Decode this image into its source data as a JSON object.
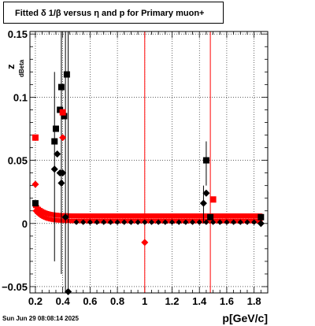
{
  "window": {
    "title": "Fitted δ 1/β versus η and p for Primary muon+",
    "timestamp": "Sun Jun 29 08:08:14 2025"
  },
  "chart_data": {
    "type": "scatter",
    "title": "Fitted δ 1/β versus η and p for Primary muon+",
    "xlabel": "p[GeV/c]",
    "ylabel": "z",
    "ylabel_sub": "dBeta",
    "xlim": [
      0.16,
      1.9
    ],
    "ylim": [
      -0.055,
      0.152
    ],
    "grid": true,
    "x_ticks": [
      0.2,
      0.4,
      0.6,
      0.8,
      1.0,
      1.2,
      1.4,
      1.6,
      1.8
    ],
    "x_tick_labels": [
      "0.2",
      "0.4",
      "0.6",
      "0.8",
      "1",
      "1.2",
      "1.4",
      "1.6",
      "1.8"
    ],
    "y_ticks": [
      -0.05,
      0,
      0.05,
      0.1,
      0.15
    ],
    "y_tick_labels": [
      "−0.05",
      "0",
      "0.05",
      "0.1",
      "0.15"
    ],
    "vertical_lines": [
      1.0,
      1.48
    ],
    "colors": {
      "black": "#000000",
      "red": "#ff0000"
    },
    "series": [
      {
        "color": "#000000",
        "marker": "square",
        "points": [
          {
            "x": 0.2,
            "y": 0.016
          },
          {
            "x": 0.34,
            "y": 0.065
          },
          {
            "x": 0.35,
            "y": 0.075
          },
          {
            "x": 0.38,
            "y": 0.09
          },
          {
            "x": 0.39,
            "y": 0.108
          },
          {
            "x": 0.41,
            "y": 0.085
          },
          {
            "x": 0.43,
            "y": 0.118
          },
          {
            "x": 1.45,
            "y": 0.05
          },
          {
            "x": 1.48,
            "y": 0.005
          },
          {
            "x": 1.85,
            "y": 0.005
          }
        ]
      },
      {
        "color": "#000000",
        "marker": "diamond",
        "points": [
          {
            "x": 0.34,
            "y": 0.043
          },
          {
            "x": 0.36,
            "y": 0.055
          },
          {
            "x": 0.38,
            "y": 0.04
          },
          {
            "x": 0.39,
            "y": 0.032
          },
          {
            "x": 0.4,
            "y": 0.04
          },
          {
            "x": 0.42,
            "y": 0.005
          },
          {
            "x": 0.44,
            "y": -0.054
          },
          {
            "x": 1.43,
            "y": 0.016
          },
          {
            "x": 1.45,
            "y": 0.024
          },
          {
            "x": 1.85,
            "y": 0.0
          }
        ]
      },
      {
        "color": "#ff0000",
        "marker": "square",
        "points": [
          {
            "x": 0.2,
            "y": 0.068
          },
          {
            "x": 0.4,
            "y": 0.088
          },
          {
            "x": 1.5,
            "y": 0.019
          }
        ]
      },
      {
        "color": "#ff0000",
        "marker": "diamond",
        "points": [
          {
            "x": 0.2,
            "y": 0.031
          },
          {
            "x": 0.4,
            "y": 0.068
          },
          {
            "x": 1.0,
            "y": -0.015
          }
        ]
      }
    ],
    "band": {
      "color": "#ff0000",
      "x_start": 0.2,
      "x_end": 1.85,
      "y_start": 0.014,
      "y_plateau": 0.006,
      "decay": 0.06
    }
  }
}
